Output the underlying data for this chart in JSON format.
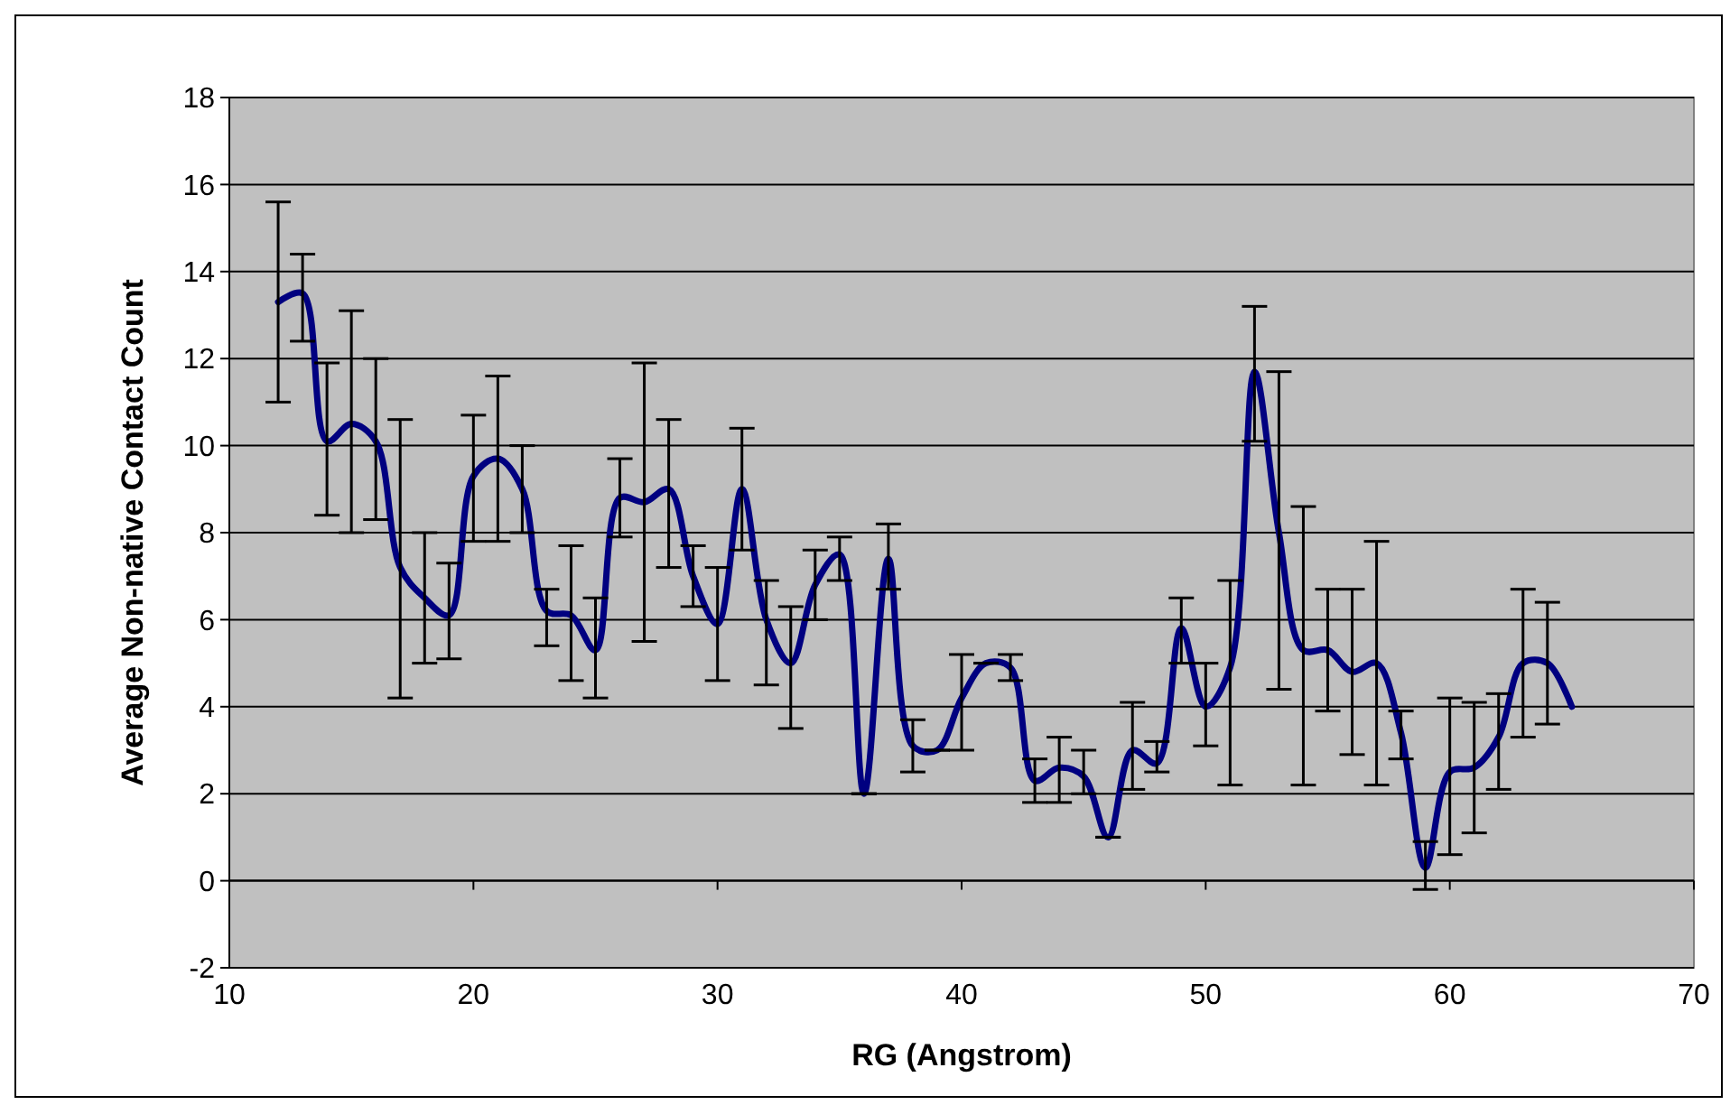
{
  "chart_data": {
    "type": "line",
    "xlabel": "RG (Angstrom)",
    "ylabel": "Average Non-native Contact Count",
    "xlim": [
      10,
      70
    ],
    "xticks": [
      10,
      20,
      30,
      40,
      50,
      60,
      70
    ],
    "ylim": [
      -2,
      18
    ],
    "yticks": [
      -2,
      0,
      2,
      4,
      6,
      8,
      10,
      12,
      14,
      16,
      18
    ],
    "grid": "y",
    "series": [
      {
        "color": "#000080",
        "x": [
          12,
          13,
          14,
          15,
          16,
          17,
          18,
          19,
          20,
          21,
          22,
          23,
          24,
          25,
          26,
          27,
          28,
          29,
          30,
          31,
          32,
          33,
          34,
          35,
          36,
          37,
          38,
          39,
          40,
          41,
          42,
          43,
          44,
          45,
          46,
          47,
          48,
          49,
          50,
          51,
          52,
          53,
          54,
          55,
          56,
          57,
          58,
          59,
          60,
          61,
          62,
          63,
          64,
          65
        ],
        "values": [
          13.3,
          13.5,
          10.1,
          10.5,
          10.1,
          7.2,
          6.5,
          6.1,
          9.3,
          9.7,
          9.0,
          6.2,
          6.1,
          5.3,
          8.8,
          8.7,
          9.0,
          7.0,
          5.9,
          9.0,
          6.0,
          5.0,
          6.8,
          7.5,
          2.0,
          7.4,
          3.1,
          3.0,
          4.2,
          5.0,
          4.9,
          2.3,
          2.6,
          2.4,
          1.0,
          3.0,
          2.7,
          5.8,
          4.0,
          4.9,
          11.7,
          8.0,
          5.3,
          5.3,
          4.8,
          5.0,
          3.4,
          0.3,
          2.5,
          2.6,
          3.3,
          5.0,
          5.0,
          4.0
        ],
        "errors": [
          [
            11.0,
            15.6
          ],
          [
            12.4,
            14.4
          ],
          [
            8.4,
            11.9
          ],
          [
            8.0,
            13.1
          ],
          [
            8.3,
            12.0
          ],
          [
            4.2,
            10.6
          ],
          [
            5.0,
            8.0
          ],
          [
            5.1,
            7.3
          ],
          [
            7.8,
            10.7
          ],
          [
            7.8,
            11.6
          ],
          [
            8.0,
            10.0
          ],
          [
            5.4,
            6.7
          ],
          [
            4.6,
            7.7
          ],
          [
            4.2,
            6.5
          ],
          [
            7.9,
            9.7
          ],
          [
            5.5,
            11.9
          ],
          [
            7.2,
            10.6
          ],
          [
            6.3,
            7.7
          ],
          [
            4.6,
            7.2
          ],
          [
            7.6,
            10.4
          ],
          [
            4.5,
            6.9
          ],
          [
            3.5,
            6.3
          ],
          [
            6.0,
            7.6
          ],
          [
            6.9,
            7.9
          ],
          [
            2.0,
            2.0
          ],
          [
            6.7,
            8.2
          ],
          [
            2.5,
            3.7
          ],
          [
            3.0,
            3.0
          ],
          [
            3.0,
            5.2
          ],
          [
            5.0,
            5.0
          ],
          [
            4.6,
            5.2
          ],
          [
            1.8,
            2.8
          ],
          [
            1.8,
            3.3
          ],
          [
            2.0,
            3.0
          ],
          [
            1.0,
            1.0
          ],
          [
            2.1,
            4.1
          ],
          [
            2.5,
            3.2
          ],
          [
            5.0,
            6.5
          ],
          [
            3.1,
            5.0
          ],
          [
            2.2,
            6.9
          ],
          [
            10.1,
            13.2
          ],
          [
            4.4,
            11.7
          ],
          [
            2.2,
            8.6
          ],
          [
            3.9,
            6.7
          ],
          [
            2.9,
            6.7
          ],
          [
            2.2,
            7.8
          ],
          [
            2.8,
            3.9
          ],
          [
            -0.2,
            0.9
          ],
          [
            0.6,
            4.2
          ],
          [
            1.1,
            4.1
          ],
          [
            2.1,
            4.3
          ],
          [
            3.3,
            6.7
          ],
          [
            3.6,
            6.4
          ],
          null
        ]
      }
    ]
  }
}
